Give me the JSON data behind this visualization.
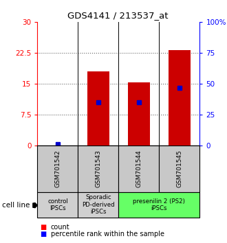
{
  "title": "GDS4141 / 213537_at",
  "samples": [
    "GSM701542",
    "GSM701543",
    "GSM701544",
    "GSM701545"
  ],
  "count_values": [
    0.1,
    18.0,
    15.3,
    23.2
  ],
  "percentile_values": [
    1.5,
    35.0,
    35.0,
    47.0
  ],
  "ylim_left": [
    0,
    30
  ],
  "ylim_right": [
    0,
    100
  ],
  "yticks_left": [
    0,
    7.5,
    15,
    22.5,
    30
  ],
  "yticks_right": [
    0,
    25,
    50,
    75,
    100
  ],
  "ytick_labels_left": [
    "0",
    "7.5",
    "15",
    "22.5",
    "30"
  ],
  "ytick_labels_right": [
    "0",
    "25",
    "50",
    "75",
    "100%"
  ],
  "bar_color": "#cc0000",
  "percentile_color": "#0000cc",
  "bar_width": 0.55,
  "groups": [
    {
      "label": "control\nIPSCs",
      "start": 0,
      "end": 1,
      "color": "#d0d0d0"
    },
    {
      "label": "Sporadic\nPD-derived\niPSCs",
      "start": 1,
      "end": 2,
      "color": "#d0d0d0"
    },
    {
      "label": "presenilin 2 (PS2)\niPSCs",
      "start": 2,
      "end": 4,
      "color": "#66ff66"
    }
  ],
  "cell_line_label": "cell line",
  "legend_count_label": "count",
  "legend_percentile_label": "percentile rank within the sample",
  "dotted_line_color": "#666666",
  "sample_box_color": "#c8c8c8",
  "background_color": "#ffffff"
}
